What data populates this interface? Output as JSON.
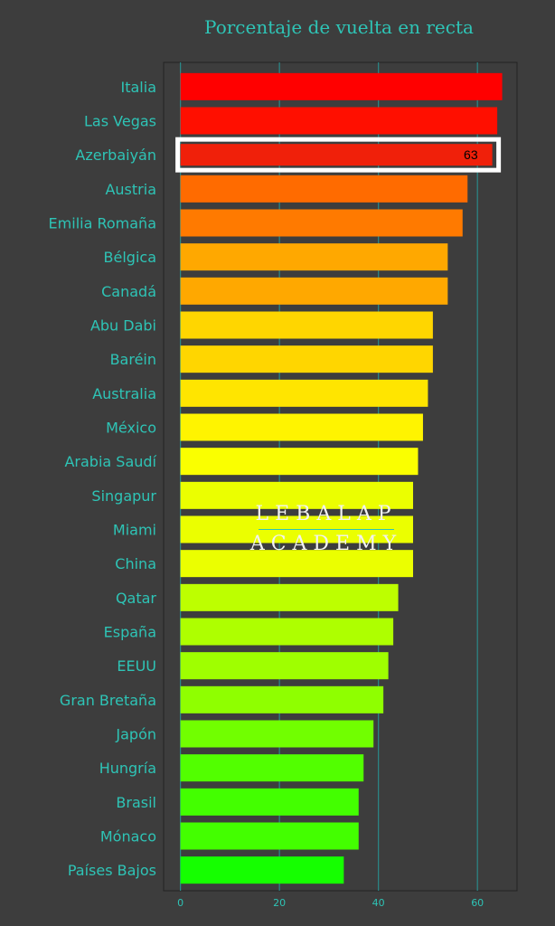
{
  "chart_data": {
    "type": "bar",
    "orientation": "horizontal",
    "title": "Porcentaje de vuelta en recta",
    "xlabel": "",
    "ylabel": "",
    "xlim": [
      -3.4,
      68
    ],
    "x_ticks": [
      0,
      20,
      40,
      60
    ],
    "grid": "vertical",
    "categories": [
      "Italia",
      "Las Vegas",
      "Azerbaiyán",
      "Austria",
      "Emilia Romaña",
      "Bélgica",
      "Canadá",
      "Abu Dabi",
      "Baréin",
      "Australia",
      "México",
      "Arabia Saudí",
      "Singapur",
      "Miami",
      "China",
      "Qatar",
      "España",
      "EEUU",
      "Gran Bretaña",
      "Japón",
      "Hungría",
      "Brasil",
      "Mónaco",
      "Países Bajos"
    ],
    "values": [
      65,
      64,
      63,
      58,
      57,
      54,
      54,
      51,
      51,
      50,
      49,
      48,
      47,
      47,
      47,
      44,
      43,
      42,
      41,
      39,
      37,
      36,
      36,
      33
    ],
    "highlight": {
      "category": "Azerbaiyán",
      "label": "63"
    },
    "colors": {
      "gradient_high": "#ff0000",
      "gradient_low": "#1eff0a",
      "highlight_box": "#ffffff",
      "text": "#2ec4b6",
      "grid": "#2a8a8a",
      "background": "#3d3d3d"
    }
  },
  "watermark": {
    "line1": "LEBALAP",
    "line2": "ACADEMY"
  }
}
